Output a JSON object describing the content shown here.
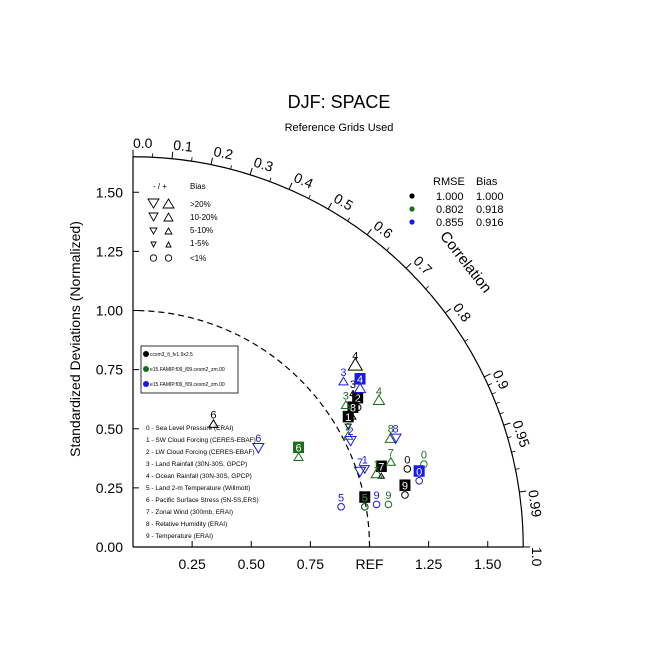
{
  "title": "DJF: SPACE",
  "subtitle": "Reference Grids Used",
  "ylabel": "Standardized Deviations (Normalized)",
  "corr_label": "Correlation",
  "ref_label": "REF",
  "colors": {
    "black": "#000000",
    "green": "#1a6e1a",
    "blue": "#1818f0"
  },
  "stats_header": {
    "rmse": "RMSE",
    "bias": "Bias"
  },
  "stats_rows": [
    {
      "color": "black",
      "rmse": "1.000",
      "bias": "1.000"
    },
    {
      "color": "green",
      "rmse": "0.802",
      "bias": "0.918"
    },
    {
      "color": "blue",
      "rmse": "0.855",
      "bias": "0.916"
    }
  ],
  "bias_legend": {
    "header_sign": "- / +",
    "header_bias": "Bias",
    "rows": [
      {
        "label": ">20%",
        "marker": "triangle-large"
      },
      {
        "label": "10-20%",
        "marker": "triangle-medium"
      },
      {
        "label": "5-10%",
        "marker": "triangle-small"
      },
      {
        "label": "1-5%",
        "marker": "triangle-tiny"
      },
      {
        "label": "<1%",
        "marker": "circle"
      }
    ]
  },
  "case_legend": [
    {
      "color": "black",
      "label": "ccsm3_fi_fv1.9x2.5"
    },
    {
      "color": "green",
      "label": "e15.FAMIP.f09_f09.cesm2_zm.00"
    },
    {
      "color": "blue",
      "label": "e15.FAMIP.f09_f09.cesm2_zm.00"
    }
  ],
  "variables": [
    "0 - Sea Level Pressure (ERAI)",
    "1 - SW Cloud Forcing (CERES-EBAF)",
    "2 - LW Cloud Forcing (CERES-EBAF)",
    "3 - Land Rainfall (30N-30S, GPCP)",
    "4 - Ocean Rainfall (30N-30S, GPCP)",
    "5 - Land 2-m Temperature (Willmott)",
    "6 - Pacific Surface Stress (5N-5S,ERS)",
    "7 - Zonal Wind (300mb, ERAI)",
    "8 - Relative Humidity (ERAI)",
    "9 - Temperature (ERAI)"
  ],
  "chart_data": {
    "type": "scatter",
    "subtype": "taylor-diagram",
    "title": "DJF: SPACE",
    "subtitle": "Reference Grids Used",
    "ylabel": "Standardized Deviations (Normalized)",
    "xlabel": "",
    "xlim": [
      0,
      1.65
    ],
    "ylim": [
      0,
      1.65
    ],
    "reference_std": 1.0,
    "x_ticks": [
      "0.25",
      "0.50",
      "0.75",
      "REF",
      "1.25",
      "1.50"
    ],
    "x_tick_values": [
      0.25,
      0.5,
      0.75,
      1.0,
      1.25,
      1.5
    ],
    "y_ticks": [
      "0.00",
      "0.25",
      "0.50",
      "0.75",
      "1.00",
      "1.25",
      "1.50"
    ],
    "y_tick_values": [
      0,
      0.25,
      0.5,
      0.75,
      1.0,
      1.25,
      1.5
    ],
    "corr_ticks": [
      "0.0",
      "0.1",
      "0.2",
      "0.3",
      "0.4",
      "0.5",
      "0.6",
      "0.7",
      "0.8",
      "0.9",
      "0.95",
      "0.99",
      "1.0"
    ],
    "corr_tick_values": [
      0.0,
      0.1,
      0.2,
      0.3,
      0.4,
      0.5,
      0.6,
      0.7,
      0.8,
      0.9,
      0.95,
      0.99,
      1.0
    ],
    "series": [
      {
        "color": "black",
        "points": [
          {
            "label": "0",
            "x": 1.16,
            "y": 0.33,
            "marker": "circle"
          },
          {
            "label": "1",
            "x": 0.91,
            "y": 0.51,
            "marker": "triangle-down-tiny"
          },
          {
            "label": "2",
            "x": 0.95,
            "y": 0.59,
            "marker": "circle"
          },
          {
            "label": "3",
            "x": 0.93,
            "y": 0.65,
            "marker": "triangle-up-tiny"
          },
          {
            "label": "4",
            "x": 0.94,
            "y": 0.77,
            "marker": "triangle-up-large"
          },
          {
            "label": "5",
            "x": 0.98,
            "y": 0.17,
            "marker": "circle"
          },
          {
            "label": "6",
            "x": 0.34,
            "y": 0.52,
            "marker": "triangle-up-small"
          },
          {
            "label": "7",
            "x": 1.05,
            "y": 0.3,
            "marker": "triangle-up-tiny"
          },
          {
            "label": "8",
            "x": 0.93,
            "y": 0.55,
            "marker": "triangle-up-tiny"
          },
          {
            "label": "9",
            "x": 1.15,
            "y": 0.22,
            "marker": "circle"
          }
        ]
      },
      {
        "color": "green",
        "points": [
          {
            "label": "0",
            "x": 1.23,
            "y": 0.35,
            "marker": "circle"
          },
          {
            "label": "1",
            "x": 1.03,
            "y": 0.31,
            "marker": "triangle-up-medium"
          },
          {
            "label": "2",
            "x": 0.91,
            "y": 0.47,
            "marker": "triangle-up-small"
          },
          {
            "label": "3",
            "x": 0.9,
            "y": 0.6,
            "marker": "triangle-up-small"
          },
          {
            "label": "4",
            "x": 1.04,
            "y": 0.62,
            "marker": "triangle-up-medium"
          },
          {
            "label": "5",
            "x": 0.98,
            "y": 0.17,
            "marker": "circle"
          },
          {
            "label": "6",
            "x": 0.7,
            "y": 0.38,
            "marker": "triangle-up-small"
          },
          {
            "label": "7",
            "x": 1.09,
            "y": 0.36,
            "marker": "triangle-up-small"
          },
          {
            "label": "8",
            "x": 1.09,
            "y": 0.46,
            "marker": "triangle-up-medium"
          },
          {
            "label": "9",
            "x": 1.08,
            "y": 0.18,
            "marker": "circle"
          }
        ]
      },
      {
        "color": "blue",
        "points": [
          {
            "label": "0",
            "x": 1.21,
            "y": 0.28,
            "marker": "circle"
          },
          {
            "label": "1",
            "x": 0.98,
            "y": 0.33,
            "marker": "triangle-down-small"
          },
          {
            "label": "2",
            "x": 0.92,
            "y": 0.45,
            "marker": "triangle-down-medium"
          },
          {
            "label": "3",
            "x": 0.89,
            "y": 0.7,
            "marker": "triangle-up-small"
          },
          {
            "label": "4",
            "x": 0.96,
            "y": 0.67,
            "marker": "triangle-up-medium"
          },
          {
            "label": "5",
            "x": 0.88,
            "y": 0.17,
            "marker": "circle"
          },
          {
            "label": "6",
            "x": 0.53,
            "y": 0.42,
            "marker": "triangle-down-medium"
          },
          {
            "label": "7",
            "x": 0.96,
            "y": 0.32,
            "marker": "triangle-down-medium"
          },
          {
            "label": "8",
            "x": 1.11,
            "y": 0.46,
            "marker": "triangle-down-medium"
          },
          {
            "label": "9",
            "x": 1.03,
            "y": 0.18,
            "marker": "circle"
          }
        ]
      }
    ],
    "highlighted": [
      {
        "color": "black",
        "label": "1"
      },
      {
        "color": "black",
        "label": "2"
      },
      {
        "color": "black",
        "label": "5"
      },
      {
        "color": "black",
        "label": "7"
      },
      {
        "color": "black",
        "label": "8"
      },
      {
        "color": "black",
        "label": "9"
      },
      {
        "color": "green",
        "label": "6"
      },
      {
        "color": "blue",
        "label": "0"
      },
      {
        "color": "blue",
        "label": "4"
      }
    ]
  }
}
